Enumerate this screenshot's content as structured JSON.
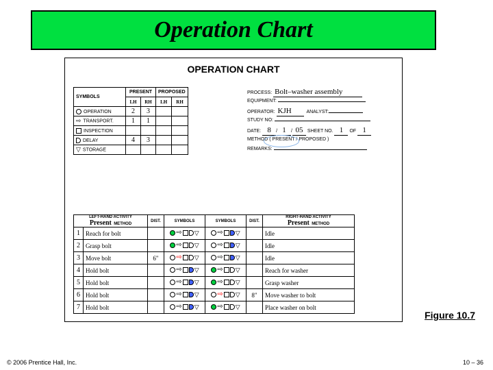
{
  "banner": {
    "title": "Operation Chart",
    "bg": "#00e040"
  },
  "chart_title": "OPERATION CHART",
  "symbols_table": {
    "headers": {
      "symbols": "SYMBOLS",
      "present": "PRESENT",
      "proposed": "PROPOSED",
      "lh": "LH",
      "rh": "RH"
    },
    "rows": [
      {
        "label": "OPERATION",
        "present_lh": "2",
        "present_rh": "3"
      },
      {
        "label": "TRANSPORT.",
        "present_lh": "1",
        "present_rh": "1"
      },
      {
        "label": "INSPECTION",
        "present_lh": "",
        "present_rh": ""
      },
      {
        "label": "DELAY",
        "present_lh": "4",
        "present_rh": "3"
      },
      {
        "label": "STORAGE",
        "present_lh": "",
        "present_rh": ""
      }
    ]
  },
  "meta": {
    "process_label": "PROCESS:",
    "process": "Bolt–washer assembly",
    "equipment_label": "EQUIPMENT:",
    "operator_label": "OPERATOR:",
    "operator": "KJH",
    "analyst_label": "ANALYST:",
    "study_label": "STUDY NO:",
    "date_label": "DATE:",
    "date_m": "8",
    "date_d": "1",
    "date_y": "05",
    "sheet_label": "SHEET NO.",
    "sheet": "1",
    "of_label": "OF",
    "sheets": "1",
    "method_label": "METHOD ( PRESENT / PROPOSED )",
    "remarks_label": "REMARKS:"
  },
  "activity": {
    "hdr": {
      "left": "LEFT-HAND ACTIVITY",
      "right": "RIGHT-HAND ACTIVITY",
      "dist": "DIST.",
      "sym": "SYMBOLS",
      "method": "METHOD",
      "present": "Present"
    },
    "rows": [
      {
        "n": "1",
        "lh": "Reach for bolt",
        "dl": "",
        "sl": [
          "c:green",
          "a",
          "sq",
          "d",
          "t"
        ],
        "sr": [
          "c",
          "a",
          "sq",
          "d:blue",
          "t"
        ],
        "dr": "",
        "rh": "Idle"
      },
      {
        "n": "2",
        "lh": "Grasp bolt",
        "dl": "",
        "sl": [
          "c:green",
          "a",
          "sq",
          "d",
          "t"
        ],
        "sr": [
          "c",
          "a",
          "sq",
          "d:blue",
          "t"
        ],
        "dr": "",
        "rh": "Idle"
      },
      {
        "n": "3",
        "lh": "Move bolt",
        "dl": "6\"",
        "sl": [
          "c",
          "a:red",
          "sq",
          "d",
          "t"
        ],
        "sr": [
          "c",
          "a",
          "sq",
          "d:blue",
          "t"
        ],
        "dr": "",
        "rh": "Idle"
      },
      {
        "n": "4",
        "lh": "Hold bolt",
        "dl": "",
        "sl": [
          "c",
          "a",
          "sq",
          "d:blue",
          "t"
        ],
        "sr": [
          "c:green",
          "a",
          "sq",
          "d",
          "t"
        ],
        "dr": "",
        "rh": "Reach for washer"
      },
      {
        "n": "5",
        "lh": "Hold bolt",
        "dl": "",
        "sl": [
          "c",
          "a",
          "sq",
          "d:blue",
          "t"
        ],
        "sr": [
          "c:green",
          "a",
          "sq",
          "d",
          "t"
        ],
        "dr": "",
        "rh": "Grasp washer"
      },
      {
        "n": "6",
        "lh": "Hold bolt",
        "dl": "",
        "sl": [
          "c",
          "a",
          "sq",
          "d:blue",
          "t"
        ],
        "sr": [
          "c",
          "a:red",
          "sq",
          "d",
          "t"
        ],
        "dr": "8\"",
        "rh": "Move washer to bolt"
      },
      {
        "n": "7",
        "lh": "Hold bolt",
        "dl": "",
        "sl": [
          "c",
          "a",
          "sq",
          "d:blue",
          "t"
        ],
        "sr": [
          "c:green",
          "a",
          "sq",
          "d",
          "t"
        ],
        "dr": "",
        "rh": "Place washer on bolt"
      }
    ]
  },
  "figure": "Figure 10.7",
  "copyright": "© 2006 Prentice Hall, Inc.",
  "pagenum": "10 – 36"
}
